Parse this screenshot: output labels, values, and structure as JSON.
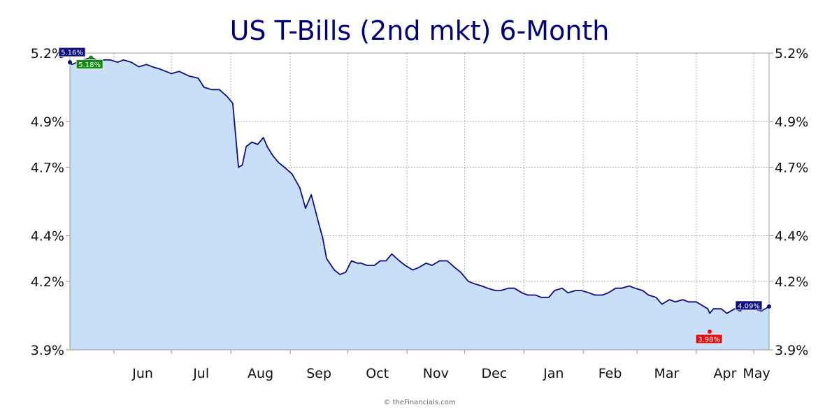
{
  "chart_data": {
    "type": "area",
    "title": "US T-Bills (2nd mkt) 6-Month",
    "y_tick_labels": [
      "5.2%",
      "4.9%",
      "4.7%",
      "4.4%",
      "4.2%",
      "3.9%"
    ],
    "y_ticks": [
      5.2,
      4.9,
      4.7,
      4.4,
      4.2,
      3.9
    ],
    "ylim": [
      3.9,
      5.2
    ],
    "x_tick_labels": [
      "Jun",
      "Jul",
      "Aug",
      "Sep",
      "Oct",
      "Nov",
      "Dec",
      "Jan",
      "Feb",
      "Mar",
      "Apr",
      "May"
    ],
    "xlim": [
      "2024-05-09",
      "2025-05-09"
    ],
    "grid": true,
    "x": [
      "2024-05-09",
      "2024-05-10",
      "2024-05-13",
      "2024-05-16",
      "2024-05-20",
      "2024-05-23",
      "2024-05-27",
      "2024-05-30",
      "2024-06-03",
      "2024-06-06",
      "2024-06-10",
      "2024-06-14",
      "2024-06-18",
      "2024-06-21",
      "2024-06-25",
      "2024-07-01",
      "2024-07-05",
      "2024-07-10",
      "2024-07-15",
      "2024-07-18",
      "2024-07-22",
      "2024-07-24",
      "2024-07-26",
      "2024-07-30",
      "2024-08-02",
      "2024-08-05",
      "2024-08-07",
      "2024-08-09",
      "2024-08-12",
      "2024-08-15",
      "2024-08-18",
      "2024-08-20",
      "2024-08-23",
      "2024-08-26",
      "2024-08-29",
      "2024-09-02",
      "2024-09-06",
      "2024-09-09",
      "2024-09-12",
      "2024-09-16",
      "2024-09-18",
      "2024-09-20",
      "2024-09-24",
      "2024-09-27",
      "2024-09-30",
      "2024-10-03",
      "2024-10-06",
      "2024-10-08",
      "2024-10-11",
      "2024-10-15",
      "2024-10-18",
      "2024-10-21",
      "2024-10-24",
      "2024-10-28",
      "2024-10-31",
      "2024-11-04",
      "2024-11-07",
      "2024-11-11",
      "2024-11-14",
      "2024-11-18",
      "2024-11-22",
      "2024-11-26",
      "2024-11-29",
      "2024-12-03",
      "2024-12-06",
      "2024-12-10",
      "2024-12-13",
      "2024-12-17",
      "2024-12-20",
      "2024-12-24",
      "2024-12-27",
      "2024-12-31",
      "2025-01-03",
      "2025-01-07",
      "2025-01-10",
      "2025-01-14",
      "2025-01-17",
      "2025-01-21",
      "2025-01-24",
      "2025-01-28",
      "2025-01-31",
      "2025-02-04",
      "2025-02-07",
      "2025-02-11",
      "2025-02-14",
      "2025-02-18",
      "2025-02-21",
      "2025-02-25",
      "2025-02-28",
      "2025-03-04",
      "2025-03-07",
      "2025-03-11",
      "2025-03-14",
      "2025-03-18",
      "2025-03-21",
      "2025-03-25",
      "2025-03-28",
      "2025-04-01",
      "2025-04-03",
      "2025-04-07",
      "2025-04-08",
      "2025-04-10",
      "2025-04-14",
      "2025-04-17",
      "2025-04-21",
      "2025-04-24",
      "2025-04-28",
      "2025-05-01",
      "2025-05-05",
      "2025-05-09"
    ],
    "values": [
      5.16,
      5.15,
      5.16,
      5.17,
      5.18,
      5.17,
      5.17,
      5.17,
      5.16,
      5.17,
      5.16,
      5.14,
      5.15,
      5.14,
      5.13,
      5.11,
      5.12,
      5.1,
      5.09,
      5.05,
      5.04,
      5.04,
      5.04,
      5.01,
      4.98,
      4.7,
      4.71,
      4.79,
      4.81,
      4.8,
      4.83,
      4.79,
      4.75,
      4.72,
      4.7,
      4.67,
      4.61,
      4.52,
      4.58,
      4.45,
      4.39,
      4.3,
      4.25,
      4.23,
      4.24,
      4.29,
      4.28,
      4.28,
      4.27,
      4.27,
      4.29,
      4.29,
      4.32,
      4.29,
      4.27,
      4.25,
      4.26,
      4.28,
      4.27,
      4.29,
      4.29,
      4.26,
      4.24,
      4.2,
      4.19,
      4.18,
      4.17,
      4.16,
      4.16,
      4.17,
      4.17,
      4.15,
      4.14,
      4.14,
      4.13,
      4.13,
      4.16,
      4.17,
      4.15,
      4.16,
      4.16,
      4.15,
      4.14,
      4.14,
      4.15,
      4.17,
      4.17,
      4.18,
      4.17,
      4.16,
      4.14,
      4.13,
      4.1,
      4.12,
      4.11,
      4.12,
      4.11,
      4.11,
      4.1,
      4.08,
      4.06,
      4.08,
      4.08,
      4.06,
      4.08,
      4.07,
      4.1,
      4.08,
      4.07,
      4.09
    ],
    "annotations": [
      {
        "label": "5.16%",
        "x": "2024-05-09",
        "y": 5.16,
        "color": "#0d0d80",
        "kind": "first"
      },
      {
        "label": "5.18%",
        "x": "2024-05-20",
        "y": 5.18,
        "color": "#128a12",
        "kind": "max"
      },
      {
        "label": "3.98%",
        "x": "2025-04-08",
        "y": 3.98,
        "color": "#e01010",
        "kind": "min"
      },
      {
        "label": "4.09%",
        "x": "2025-05-09",
        "y": 4.09,
        "color": "#0d0d80",
        "kind": "last"
      }
    ],
    "colors": {
      "line": "#0d0d80",
      "fill": "#c9dff7",
      "grid": "#b0b0b0"
    }
  },
  "footer": {
    "credit": "© theFinancials.com"
  }
}
